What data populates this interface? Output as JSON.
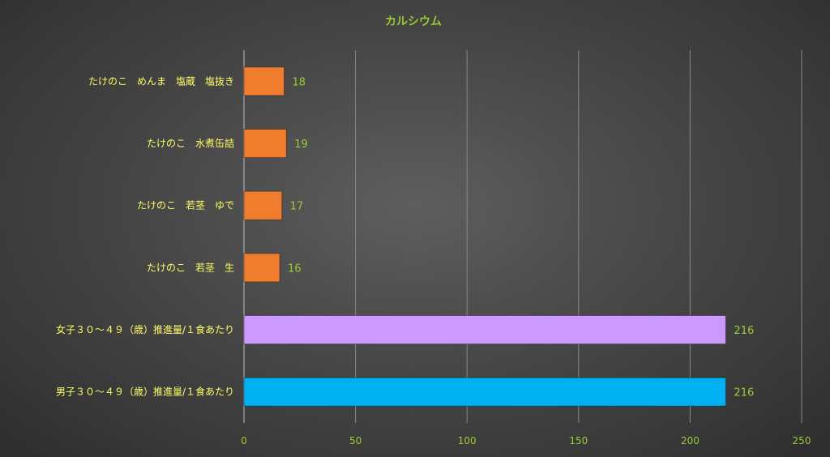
{
  "chart_data": {
    "type": "bar",
    "orientation": "horizontal",
    "title": "カルシウム",
    "categories": [
      "たけのこ　めんま　塩蔵　塩抜き",
      "たけのこ　水煮缶詰",
      "たけのこ　若茎　ゆで",
      "たけのこ　若茎　生",
      "女子３０～４９（歳）推進量/１食あたり",
      "男子３０～４９（歳）推進量/１食あたり"
    ],
    "values": [
      18,
      19,
      17,
      16,
      216,
      216
    ],
    "bar_colors": [
      "#f07c2e",
      "#f07c2e",
      "#f07c2e",
      "#f07c2e",
      "#cc99ff",
      "#00b0f0"
    ],
    "xlim": [
      0,
      250
    ],
    "xticks": [
      0,
      50,
      100,
      150,
      200,
      250
    ],
    "xlabel": "",
    "ylabel": "",
    "grid": "vertical",
    "legend": "none"
  },
  "colors": {
    "title": "#99cc33",
    "category_label": "#ffff66",
    "value_label": "#99cc33",
    "tick_label": "#99cc33",
    "gridline": "#8a8a8a",
    "axis": "#bfbfbf"
  }
}
